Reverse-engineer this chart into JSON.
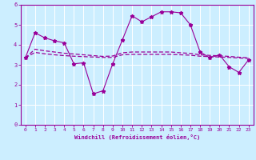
{
  "title": "",
  "xlabel": "Windchill (Refroidissement éolien,°C)",
  "ylabel": "",
  "background_color": "#cceeff",
  "grid_color": "#ffffff",
  "line_color": "#990099",
  "xlim": [
    -0.5,
    23.5
  ],
  "ylim": [
    0,
    6
  ],
  "xticks": [
    0,
    1,
    2,
    3,
    4,
    5,
    6,
    7,
    8,
    9,
    10,
    11,
    12,
    13,
    14,
    15,
    16,
    17,
    18,
    19,
    20,
    21,
    22,
    23
  ],
  "yticks": [
    0,
    1,
    2,
    3,
    4,
    5,
    6
  ],
  "series1_x": [
    0,
    1,
    2,
    3,
    4,
    5,
    6,
    7,
    8,
    9,
    10,
    11,
    12,
    13,
    14,
    15,
    16,
    17,
    18,
    19,
    20,
    21,
    22,
    23
  ],
  "series1_y": [
    3.35,
    4.6,
    4.35,
    4.2,
    4.1,
    3.05,
    3.1,
    1.55,
    1.7,
    3.05,
    4.25,
    5.45,
    5.15,
    5.4,
    5.65,
    5.65,
    5.6,
    5.0,
    3.65,
    3.35,
    3.5,
    2.9,
    2.62,
    3.25
  ],
  "series2_x": [
    0,
    1,
    2,
    3,
    4,
    5,
    6,
    7,
    8,
    9,
    10,
    11,
    12,
    13,
    14,
    15,
    16,
    17,
    18,
    19,
    20,
    21,
    22,
    23
  ],
  "series2_y": [
    3.35,
    3.62,
    3.55,
    3.5,
    3.46,
    3.43,
    3.41,
    3.39,
    3.37,
    3.37,
    3.5,
    3.52,
    3.52,
    3.52,
    3.52,
    3.52,
    3.5,
    3.48,
    3.43,
    3.41,
    3.39,
    3.37,
    3.34,
    3.32
  ],
  "series3_x": [
    0,
    1,
    2,
    3,
    4,
    5,
    6,
    7,
    8,
    9,
    10,
    11,
    12,
    13,
    14,
    15,
    16,
    17,
    18,
    19,
    20,
    21,
    22,
    23
  ],
  "series3_y": [
    3.35,
    3.78,
    3.7,
    3.64,
    3.58,
    3.54,
    3.5,
    3.46,
    3.42,
    3.44,
    3.6,
    3.64,
    3.64,
    3.64,
    3.64,
    3.64,
    3.6,
    3.57,
    3.5,
    3.47,
    3.45,
    3.42,
    3.38,
    3.35
  ]
}
